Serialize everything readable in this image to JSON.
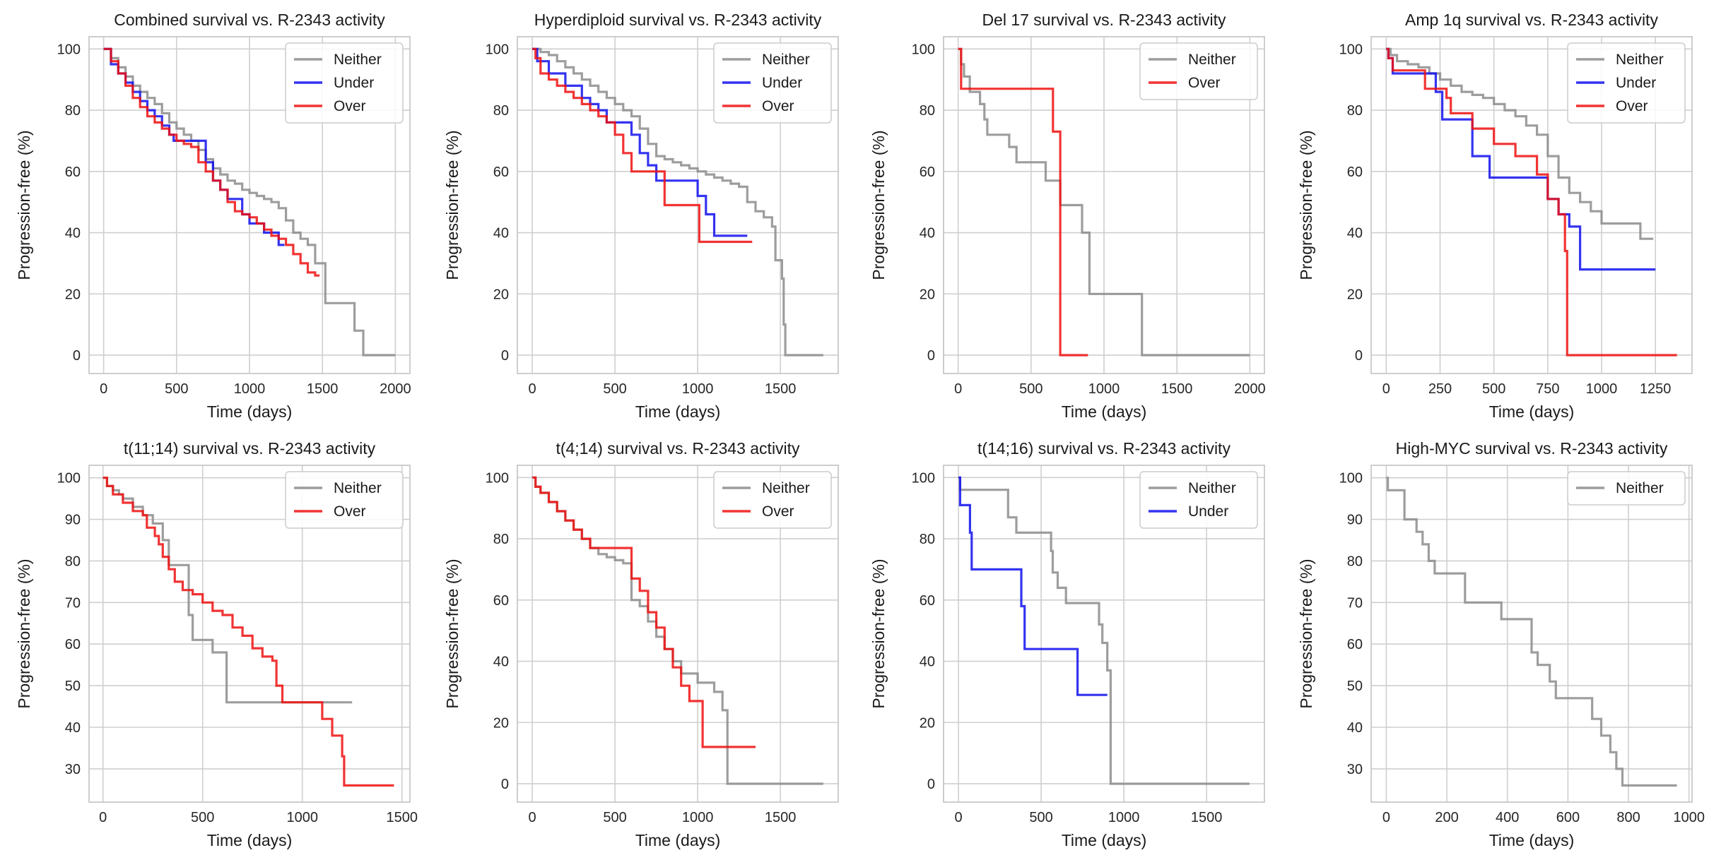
{
  "colors": {
    "Neither": "#8c8c8c",
    "Under": "#1010ee",
    "Over": "#ee1010",
    "grid": "#cfcfcf",
    "frame": "#c8c8c8"
  },
  "chart_data": [
    {
      "type": "line",
      "title": "Combined survival vs. R-2343 activity",
      "xlabel": "Time (days)",
      "ylabel": "Progression-free (%)",
      "xlim": [
        -100,
        2100
      ],
      "ylim": [
        -6,
        104
      ],
      "xticks": [
        0,
        500,
        1000,
        1500,
        2000
      ],
      "yticks": [
        0,
        20,
        40,
        60,
        80,
        100
      ],
      "grid": true,
      "legend_position": "top-right",
      "series": [
        {
          "name": "Neither",
          "x": [
            0,
            50,
            100,
            150,
            200,
            250,
            300,
            350,
            400,
            450,
            500,
            550,
            600,
            650,
            700,
            750,
            800,
            850,
            900,
            950,
            1000,
            1050,
            1100,
            1150,
            1200,
            1250,
            1300,
            1350,
            1400,
            1450,
            1500,
            1520,
            1700,
            1720,
            1780,
            2000
          ],
          "y": [
            100,
            97,
            94,
            91,
            88,
            86,
            84,
            82,
            79,
            76,
            74,
            72,
            70,
            67,
            64,
            61,
            59,
            57,
            56,
            54,
            53,
            52,
            51,
            50,
            48,
            44,
            40,
            38,
            36,
            30,
            30,
            17,
            17,
            8,
            0,
            0
          ]
        },
        {
          "name": "Under",
          "x": [
            0,
            50,
            100,
            150,
            200,
            250,
            300,
            350,
            400,
            450,
            480,
            500,
            550,
            650,
            700,
            750,
            800,
            850,
            950,
            1000,
            1100,
            1200,
            1240
          ],
          "y": [
            100,
            95,
            92,
            89,
            86,
            83,
            80,
            78,
            75,
            72,
            70,
            70,
            70,
            70,
            63,
            57,
            54,
            51,
            46,
            43,
            40,
            36,
            36
          ]
        },
        {
          "name": "Over",
          "x": [
            0,
            50,
            100,
            150,
            200,
            250,
            300,
            350,
            400,
            450,
            500,
            550,
            600,
            650,
            700,
            750,
            800,
            850,
            900,
            950,
            1000,
            1050,
            1100,
            1150,
            1200,
            1250,
            1300,
            1350,
            1400,
            1450,
            1480
          ],
          "y": [
            100,
            96,
            92,
            88,
            84,
            81,
            78,
            76,
            74,
            72,
            70,
            69,
            68,
            63,
            60,
            57,
            54,
            50,
            47,
            46,
            45,
            43,
            41,
            39,
            38,
            36,
            33,
            30,
            27,
            26,
            26
          ]
        }
      ]
    },
    {
      "type": "line",
      "title": "Hyperdiploid survival vs. R-2343 activity",
      "xlabel": "Time (days)",
      "ylabel": "Progression-free (%)",
      "xlim": [
        -90,
        1850
      ],
      "ylim": [
        -6,
        104
      ],
      "xticks": [
        0,
        500,
        1000,
        1500
      ],
      "yticks": [
        0,
        20,
        40,
        60,
        80,
        100
      ],
      "grid": true,
      "legend_position": "top-right",
      "series": [
        {
          "name": "Neither",
          "x": [
            0,
            50,
            100,
            150,
            200,
            250,
            300,
            350,
            400,
            450,
            500,
            550,
            600,
            650,
            700,
            750,
            800,
            850,
            900,
            950,
            1000,
            1050,
            1100,
            1150,
            1200,
            1250,
            1300,
            1350,
            1400,
            1450,
            1470,
            1500,
            1510,
            1520,
            1530,
            1760
          ],
          "y": [
            100,
            99,
            98,
            96,
            94,
            92,
            90,
            88,
            86,
            84,
            82,
            80,
            78,
            74,
            69,
            65,
            64,
            63,
            62,
            61,
            60,
            59,
            58,
            57,
            56,
            55,
            50,
            47,
            45,
            42,
            31,
            31,
            25,
            10,
            0,
            0
          ]
        },
        {
          "name": "Under",
          "x": [
            0,
            30,
            100,
            200,
            300,
            350,
            400,
            450,
            500,
            550,
            600,
            650,
            700,
            750,
            800,
            1000,
            1050,
            1100,
            1300
          ],
          "y": [
            100,
            96,
            92,
            88,
            84,
            82,
            80,
            76,
            76,
            76,
            72,
            66,
            62,
            57,
            57,
            52,
            46,
            39,
            39
          ]
        },
        {
          "name": "Over",
          "x": [
            0,
            20,
            50,
            100,
            150,
            200,
            250,
            300,
            350,
            400,
            450,
            500,
            550,
            600,
            650,
            700,
            800,
            850,
            1000,
            1010,
            1330
          ],
          "y": [
            100,
            97,
            92,
            90,
            88,
            86,
            84,
            82,
            80,
            78,
            76,
            72,
            66,
            60,
            60,
            60,
            49,
            49,
            49,
            37,
            37
          ]
        }
      ]
    },
    {
      "type": "line",
      "title": "Del 17 survival vs. R-2343 activity",
      "xlabel": "Time (days)",
      "ylabel": "Progression-free (%)",
      "xlim": [
        -100,
        2100
      ],
      "ylim": [
        -6,
        104
      ],
      "xticks": [
        0,
        500,
        1000,
        1500,
        2000
      ],
      "yticks": [
        0,
        20,
        40,
        60,
        80,
        100
      ],
      "grid": true,
      "legend_position": "top-right",
      "series": [
        {
          "name": "Neither",
          "x": [
            0,
            20,
            40,
            80,
            120,
            150,
            180,
            200,
            250,
            300,
            350,
            400,
            450,
            500,
            550,
            600,
            650,
            700,
            750,
            800,
            850,
            900,
            1250,
            1260,
            2000
          ],
          "y": [
            100,
            95,
            91,
            86,
            86,
            82,
            77,
            72,
            72,
            72,
            68,
            63,
            63,
            63,
            63,
            57,
            57,
            49,
            49,
            49,
            40,
            20,
            20,
            0,
            0
          ]
        },
        {
          "name": "Over",
          "x": [
            0,
            20,
            600,
            650,
            690,
            700,
            890
          ],
          "y": [
            100,
            87,
            87,
            73,
            73,
            0,
            0
          ]
        }
      ]
    },
    {
      "type": "line",
      "title": "Amp 1q survival vs. R-2343 activity",
      "xlabel": "Time (days)",
      "ylabel": "Progression-free (%)",
      "xlim": [
        -70,
        1420
      ],
      "ylim": [
        -6,
        104
      ],
      "xticks": [
        0,
        250,
        500,
        750,
        1000,
        1250
      ],
      "yticks": [
        0,
        20,
        40,
        60,
        80,
        100
      ],
      "grid": true,
      "legend_position": "top-right",
      "series": [
        {
          "name": "Neither",
          "x": [
            0,
            20,
            50,
            100,
            150,
            200,
            250,
            300,
            350,
            400,
            450,
            500,
            550,
            600,
            650,
            700,
            750,
            800,
            850,
            900,
            950,
            1000,
            1100,
            1180,
            1240
          ],
          "y": [
            100,
            98,
            96,
            95,
            94,
            92,
            90,
            88,
            86,
            85,
            84,
            82,
            80,
            78,
            75,
            72,
            65,
            58,
            53,
            50,
            47,
            43,
            43,
            38,
            38
          ]
        },
        {
          "name": "Under",
          "x": [
            0,
            10,
            30,
            180,
            230,
            260,
            400,
            480,
            500,
            650,
            750,
            800,
            850,
            900,
            1000,
            1250
          ],
          "y": [
            100,
            97,
            92,
            92,
            86,
            77,
            65,
            58,
            58,
            58,
            51,
            46,
            42,
            28,
            28,
            28
          ]
        },
        {
          "name": "Over",
          "x": [
            0,
            10,
            30,
            150,
            180,
            280,
            300,
            400,
            500,
            550,
            600,
            700,
            750,
            800,
            830,
            840,
            1350
          ],
          "y": [
            100,
            97,
            93,
            93,
            87,
            84,
            79,
            74,
            69,
            69,
            65,
            59,
            51,
            46,
            34,
            0,
            0
          ]
        }
      ]
    },
    {
      "type": "line",
      "title": "t(11;14) survival vs. R-2343 activity",
      "xlabel": "Time (days)",
      "ylabel": "Progression-free (%)",
      "xlim": [
        -70,
        1540
      ],
      "ylim": [
        22,
        103
      ],
      "xticks": [
        0,
        500,
        1000,
        1500
      ],
      "yticks": [
        30,
        40,
        50,
        60,
        70,
        80,
        90,
        100
      ],
      "grid": true,
      "legend_position": "top-right",
      "series": [
        {
          "name": "Neither",
          "x": [
            0,
            20,
            50,
            80,
            100,
            150,
            200,
            250,
            300,
            330,
            400,
            430,
            450,
            500,
            550,
            600,
            610,
            620,
            630,
            1250
          ],
          "y": [
            100,
            98,
            97,
            96,
            95,
            93,
            91,
            89,
            85,
            79,
            79,
            67,
            61,
            61,
            58,
            58,
            58,
            46,
            46,
            46
          ]
        },
        {
          "name": "Over",
          "x": [
            0,
            20,
            50,
            100,
            150,
            200,
            220,
            260,
            280,
            300,
            330,
            360,
            400,
            450,
            500,
            550,
            600,
            650,
            700,
            750,
            800,
            850,
            870,
            900,
            1000,
            1050,
            1100,
            1150,
            1200,
            1210,
            1460
          ],
          "y": [
            100,
            98,
            96,
            94,
            92,
            91,
            88,
            86,
            84,
            81,
            78,
            75,
            73,
            72,
            70,
            68,
            67,
            64,
            62,
            59,
            57,
            56,
            50,
            46,
            46,
            46,
            42,
            38,
            33,
            26,
            26
          ]
        }
      ]
    },
    {
      "type": "line",
      "title": "t(4;14) survival vs. R-2343 activity",
      "xlabel": "Time (days)",
      "ylabel": "Progression-free (%)",
      "xlim": [
        -90,
        1850
      ],
      "ylim": [
        -6,
        104
      ],
      "xticks": [
        0,
        500,
        1000,
        1500
      ],
      "yticks": [
        0,
        20,
        40,
        60,
        80,
        100
      ],
      "grid": true,
      "legend_position": "top-right",
      "series": [
        {
          "name": "Neither",
          "x": [
            0,
            20,
            50,
            100,
            150,
            200,
            250,
            300,
            350,
            400,
            450,
            500,
            550,
            600,
            650,
            700,
            750,
            800,
            850,
            900,
            1000,
            1100,
            1150,
            1180,
            1760
          ],
          "y": [
            100,
            97,
            95,
            92,
            89,
            86,
            83,
            80,
            77,
            75,
            74,
            73,
            72,
            60,
            58,
            53,
            48,
            44,
            40,
            36,
            33,
            30,
            24,
            0,
            0
          ]
        },
        {
          "name": "Over",
          "x": [
            0,
            20,
            50,
            100,
            150,
            200,
            250,
            300,
            350,
            400,
            450,
            500,
            550,
            600,
            650,
            700,
            750,
            800,
            850,
            900,
            950,
            1000,
            1030,
            1350
          ],
          "y": [
            100,
            97,
            95,
            92,
            89,
            86,
            83,
            80,
            77,
            77,
            77,
            77,
            77,
            67,
            63,
            56,
            51,
            44,
            38,
            32,
            27,
            27,
            12,
            12
          ]
        }
      ]
    },
    {
      "type": "line",
      "title": "t(14;16) survival vs. R-2343 activity",
      "xlabel": "Time (days)",
      "ylabel": "Progression-free (%)",
      "xlim": [
        -90,
        1850
      ],
      "ylim": [
        -6,
        104
      ],
      "xticks": [
        0,
        500,
        1000,
        1500
      ],
      "yticks": [
        0,
        20,
        40,
        60,
        80,
        100
      ],
      "grid": true,
      "legend_position": "top-right",
      "series": [
        {
          "name": "Neither",
          "x": [
            0,
            10,
            270,
            300,
            350,
            550,
            560,
            570,
            600,
            650,
            850,
            870,
            900,
            920,
            1760
          ],
          "y": [
            100,
            96,
            96,
            87,
            82,
            82,
            76,
            69,
            64,
            59,
            52,
            46,
            37,
            0,
            0
          ]
        },
        {
          "name": "Under",
          "x": [
            0,
            10,
            50,
            70,
            80,
            350,
            380,
            400,
            700,
            720,
            900
          ],
          "y": [
            100,
            91,
            91,
            82,
            70,
            70,
            58,
            44,
            44,
            29,
            29
          ]
        }
      ]
    },
    {
      "type": "line",
      "title": "High-MYC survival vs. R-2343 activity",
      "xlabel": "Time (days)",
      "ylabel": "Progression-free (%)",
      "xlim": [
        -50,
        1010
      ],
      "ylim": [
        22,
        103
      ],
      "xticks": [
        0,
        200,
        400,
        600,
        800,
        1000
      ],
      "yticks": [
        30,
        40,
        50,
        60,
        70,
        80,
        90,
        100
      ],
      "grid": true,
      "legend_position": "top-right",
      "series": [
        {
          "name": "Neither",
          "x": [
            0,
            5,
            60,
            100,
            120,
            140,
            160,
            200,
            230,
            260,
            300,
            350,
            380,
            470,
            480,
            500,
            540,
            560,
            650,
            680,
            710,
            740,
            760,
            780,
            960
          ],
          "y": [
            100,
            97,
            90,
            87,
            84,
            80,
            77,
            77,
            77,
            70,
            70,
            70,
            66,
            66,
            58,
            55,
            51,
            47,
            47,
            42,
            38,
            34,
            30,
            26,
            26
          ]
        }
      ]
    }
  ]
}
